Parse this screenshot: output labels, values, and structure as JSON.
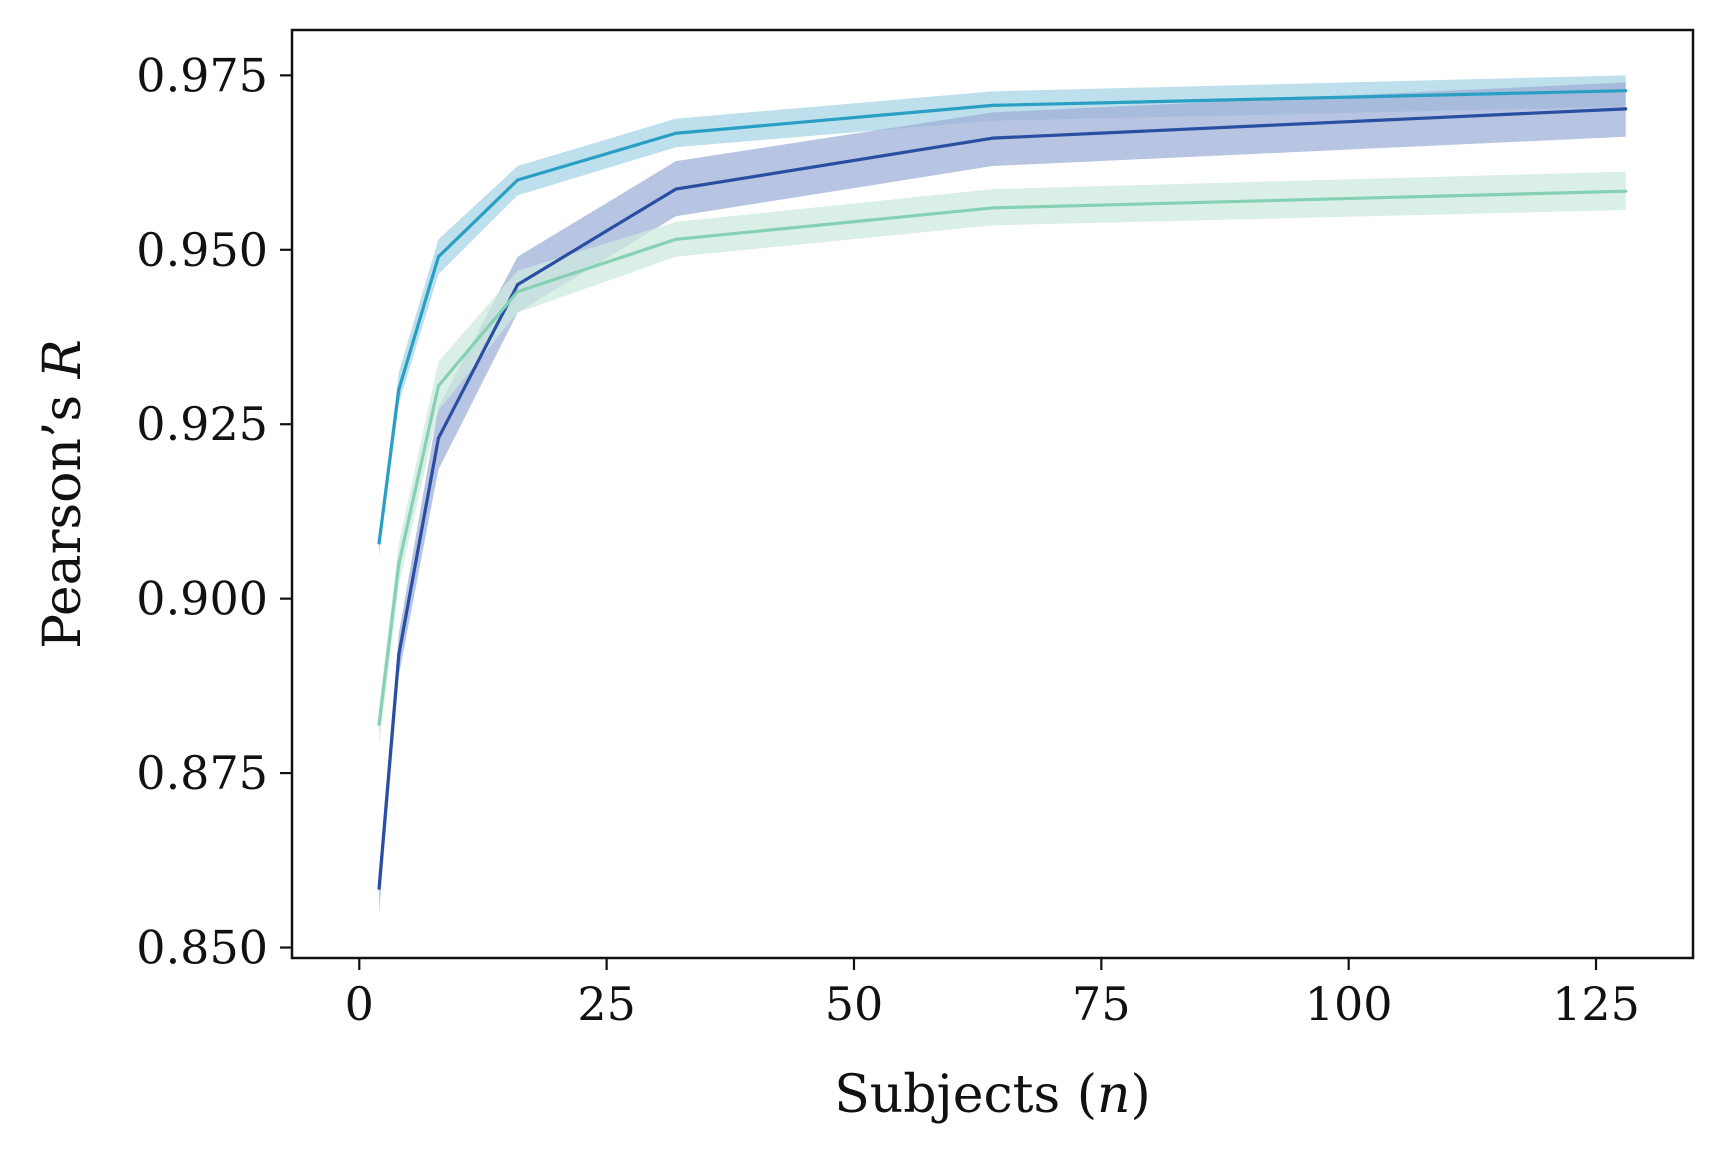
{
  "chart_data": {
    "type": "line",
    "title": "",
    "xlabel": "Subjects (n)",
    "xlabel_text": "Subjects (",
    "xlabel_var": "n",
    "xlabel_close": ")",
    "ylabel": "Pearson's R",
    "ylabel_text": "Pearson’s ",
    "ylabel_var": "R",
    "xlim": [
      -6.8,
      134.8
    ],
    "ylim": [
      0.8485,
      0.9815
    ],
    "xticks": [
      0,
      25,
      50,
      75,
      100,
      125
    ],
    "xtick_labels": [
      "0",
      "25",
      "50",
      "75",
      "100",
      "125"
    ],
    "yticks": [
      0.85,
      0.875,
      0.9,
      0.925,
      0.95,
      0.975
    ],
    "ytick_labels": [
      "0.850",
      "0.875",
      "0.900",
      "0.925",
      "0.950",
      "0.975"
    ],
    "grid": false,
    "legend": "none",
    "x": [
      2,
      4,
      8,
      16,
      32,
      64,
      128
    ],
    "series": [
      {
        "name": "series-light-blue",
        "color": "#2a9fc4",
        "band_color": "#a8d6e6",
        "values": [
          0.908,
          0.93,
          0.949,
          0.96,
          0.9667,
          0.9707,
          0.9728
        ],
        "lower": [
          0.906,
          0.928,
          0.9465,
          0.9578,
          0.9647,
          0.9685,
          0.9705
        ],
        "upper": [
          0.9095,
          0.9325,
          0.9515,
          0.962,
          0.9688,
          0.9727,
          0.975
        ]
      },
      {
        "name": "series-dark-blue",
        "color": "#2a4ea2",
        "band_color": "#9fb0d8",
        "values": [
          0.8585,
          0.892,
          0.923,
          0.945,
          0.9587,
          0.966,
          0.9702
        ],
        "lower": [
          0.855,
          0.889,
          0.9185,
          0.941,
          0.9548,
          0.962,
          0.9662
        ],
        "upper": [
          0.861,
          0.895,
          0.9275,
          0.949,
          0.9627,
          0.9697,
          0.974
        ]
      },
      {
        "name": "series-mint",
        "color": "#86d0b3",
        "band_color": "#cdebdf",
        "values": [
          0.882,
          0.905,
          0.9305,
          0.944,
          0.9515,
          0.956,
          0.9584
        ],
        "lower": [
          0.879,
          0.902,
          0.927,
          0.941,
          0.949,
          0.9535,
          0.9557
        ],
        "upper": [
          0.8845,
          0.908,
          0.934,
          0.947,
          0.954,
          0.9587,
          0.9612
        ]
      }
    ]
  }
}
